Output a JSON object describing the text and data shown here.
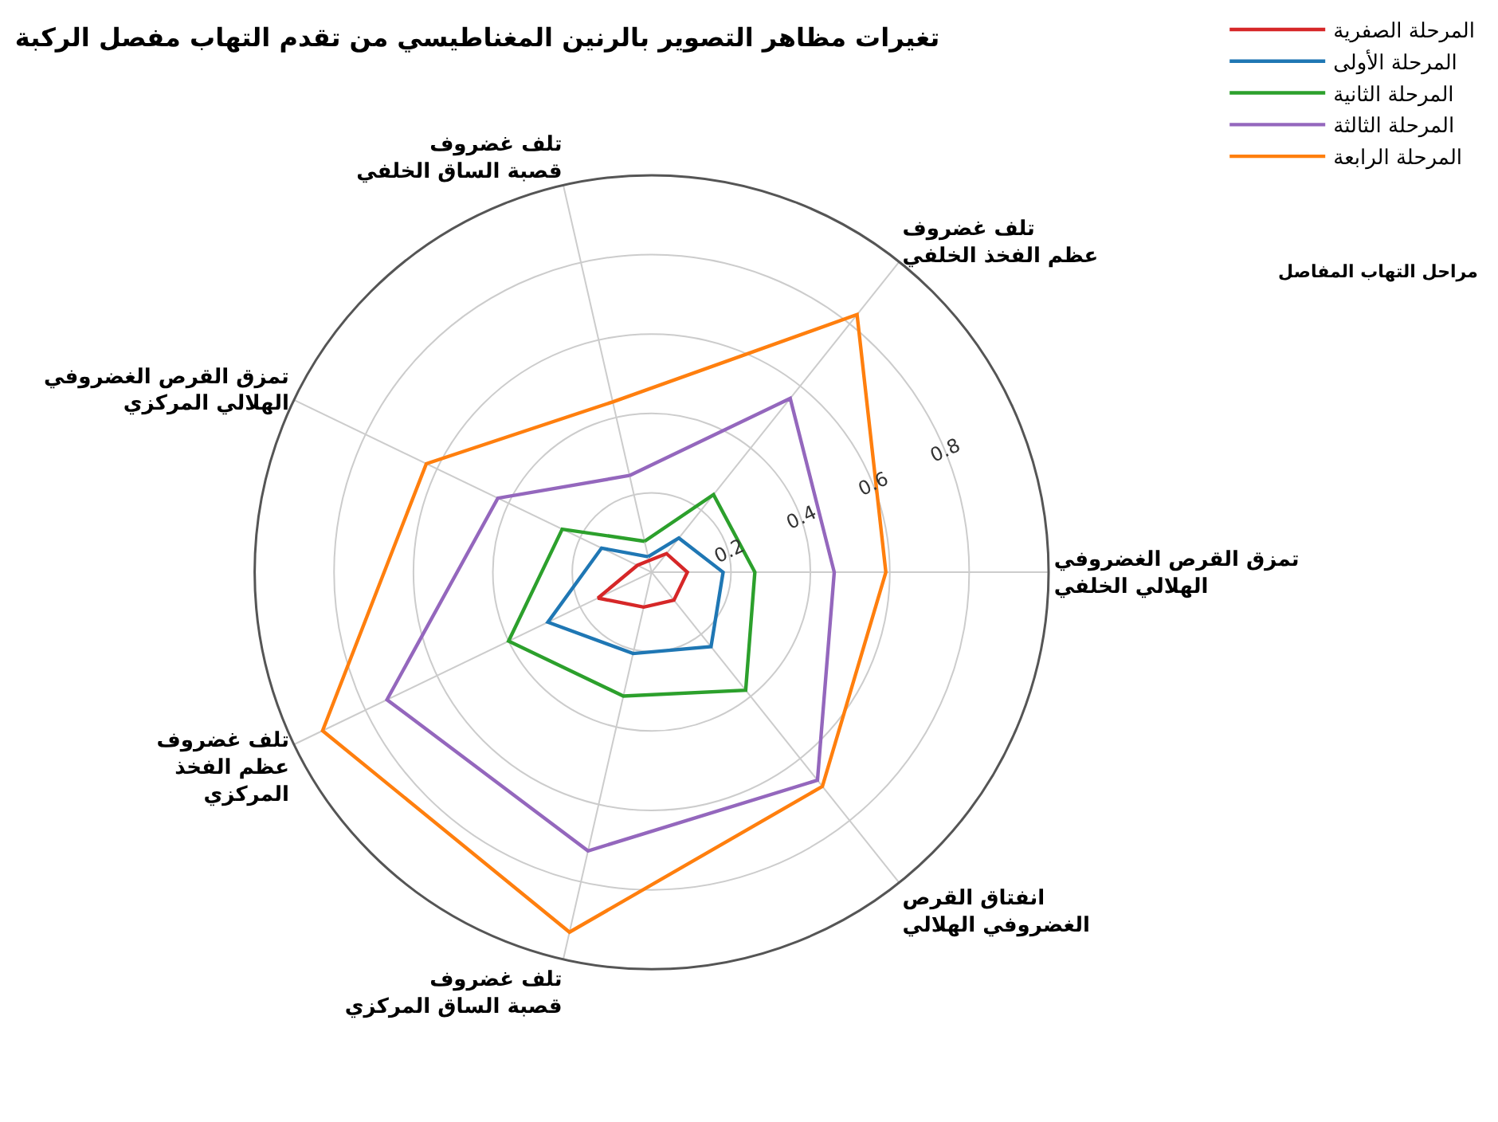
{
  "chart_data": {
    "type": "radar",
    "title": "تغيرات مظاهر التصوير بالرنين المغناطيسي من تقدم التهاب مفصل الركبة",
    "categories": [
      "تلف غضروف\nقصبة الساق الخلفي",
      "تلف غضروف\nعظم الفخذ الخلفي",
      "تمزق القرص الغضروفي\nالهلالي الخلفي",
      "انفتاق القرص\nالغضروفي الهلالي",
      "تلف غضروف\nقصبة الساق المركزي",
      "تلف غضروف\nعظم الفخذ\nالمركزي",
      "تمزق القرص الغضروفي\nالهلالي المركزي"
    ],
    "series": [
      {
        "name": "المرحلة الصفرية",
        "color": "#d62728",
        "values": [
          0.03,
          0.06,
          0.09,
          0.09,
          0.09,
          0.15,
          0.04
        ]
      },
      {
        "name": "المرحلة الأولى",
        "color": "#1f77b4",
        "values": [
          0.04,
          0.11,
          0.18,
          0.24,
          0.21,
          0.29,
          0.14
        ]
      },
      {
        "name": "المرحلة الثانية",
        "color": "#2ca02c",
        "values": [
          0.08,
          0.25,
          0.26,
          0.38,
          0.32,
          0.4,
          0.25
        ]
      },
      {
        "name": "المرحلة الثالثة",
        "color": "#9467bd",
        "values": [
          0.25,
          0.56,
          0.46,
          0.67,
          0.72,
          0.74,
          0.43
        ]
      },
      {
        "name": "المرحلة الرابعة",
        "color": "#ff7f0e",
        "values": [
          0.44,
          0.83,
          0.59,
          0.69,
          0.93,
          0.92,
          0.63
        ]
      }
    ],
    "legend_title": "مراحل التهاب المفاصل",
    "ylim": [
      0,
      1
    ],
    "yticks": [
      0.2,
      0.4,
      0.6,
      0.8
    ],
    "grid": true,
    "legend": "top right",
    "marker": "none",
    "line_style": "solid"
  }
}
